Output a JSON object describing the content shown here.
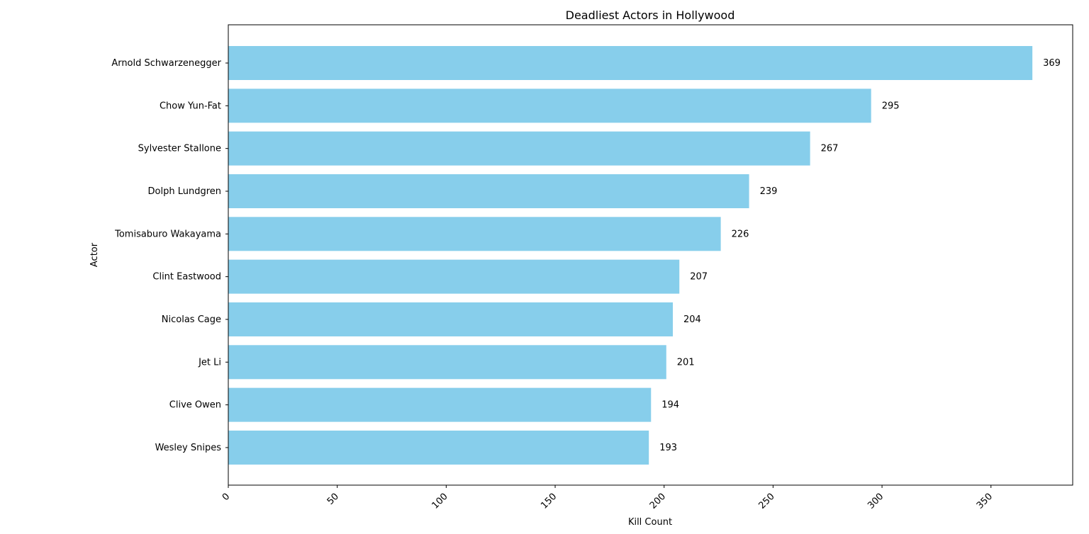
{
  "chart_data": {
    "type": "bar",
    "orientation": "horizontal",
    "title": "Deadliest Actors in Hollywood",
    "xlabel": "Kill Count",
    "ylabel": "Actor",
    "categories": [
      "Arnold Schwarzenegger",
      "Chow Yun-Fat",
      "Sylvester Stallone",
      "Dolph Lundgren",
      "Tomisaburo Wakayama",
      "Clint Eastwood",
      "Nicolas Cage",
      "Jet Li",
      "Clive Owen",
      "Wesley Snipes"
    ],
    "values": [
      369,
      295,
      267,
      239,
      226,
      207,
      204,
      201,
      194,
      193
    ],
    "xlim": [
      0,
      387.5
    ],
    "xticks": [
      0,
      50,
      100,
      150,
      200,
      250,
      300,
      350
    ],
    "xtick_rotation": 45,
    "grid": false,
    "bar_color": "#87ceeb"
  }
}
